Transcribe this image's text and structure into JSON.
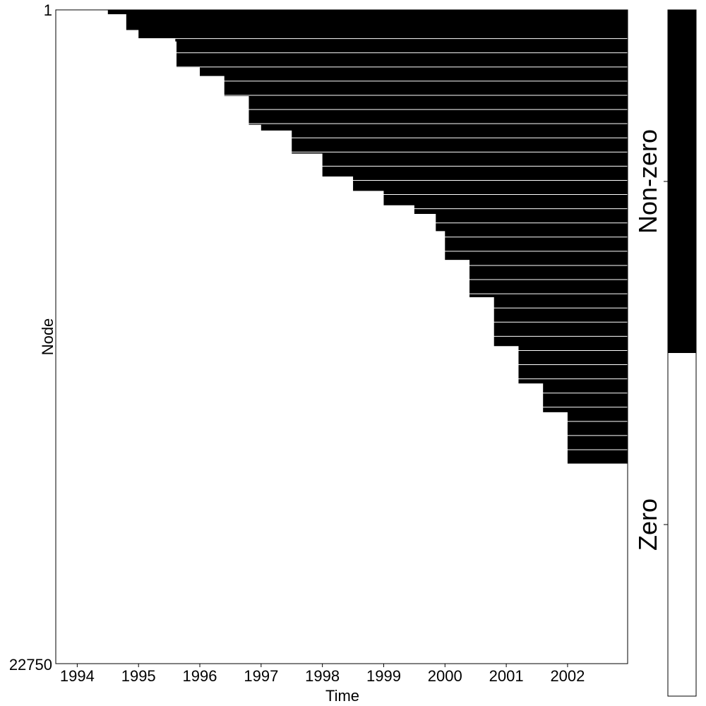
{
  "chart_data": {
    "type": "heatmap",
    "xlabel": "Time",
    "ylabel": "Node",
    "x_ticks": [
      "1994",
      "1995",
      "1996",
      "1997",
      "1998",
      "1999",
      "2000",
      "2001",
      "2002"
    ],
    "y_ticks": [
      "1",
      "22750"
    ],
    "x_range": [
      1993.65,
      2002.98
    ],
    "y_range": [
      1,
      22750
    ],
    "legend": {
      "placement": "right",
      "entries": [
        {
          "label": "Non-zero",
          "color": "#000000"
        },
        {
          "label": "Zero",
          "color": "#ffffff"
        }
      ]
    },
    "first_nonzero_profile": [
      {
        "time": 1993.65,
        "node": 1
      },
      {
        "time": 1994.3,
        "node": 1
      },
      {
        "time": 1994.5,
        "node": 150
      },
      {
        "time": 1994.8,
        "node": 700
      },
      {
        "time": 1995.0,
        "node": 1000
      },
      {
        "time": 1995.6,
        "node": 1100
      },
      {
        "time": 1995.62,
        "node": 2000
      },
      {
        "time": 1996.0,
        "node": 2300
      },
      {
        "time": 1996.4,
        "node": 3000
      },
      {
        "time": 1996.8,
        "node": 4000
      },
      {
        "time": 1997.0,
        "node": 4200
      },
      {
        "time": 1997.5,
        "node": 5000
      },
      {
        "time": 1998.0,
        "node": 5800
      },
      {
        "time": 1998.5,
        "node": 6300
      },
      {
        "time": 1999.0,
        "node": 6800
      },
      {
        "time": 1999.5,
        "node": 7100
      },
      {
        "time": 1999.85,
        "node": 7700
      },
      {
        "time": 2000.0,
        "node": 8700
      },
      {
        "time": 2000.4,
        "node": 10000
      },
      {
        "time": 2000.8,
        "node": 11700
      },
      {
        "time": 2001.2,
        "node": 13000
      },
      {
        "time": 2001.6,
        "node": 14000
      },
      {
        "time": 2002.0,
        "node": 15800
      },
      {
        "time": 2002.98,
        "node": 15800
      }
    ]
  }
}
